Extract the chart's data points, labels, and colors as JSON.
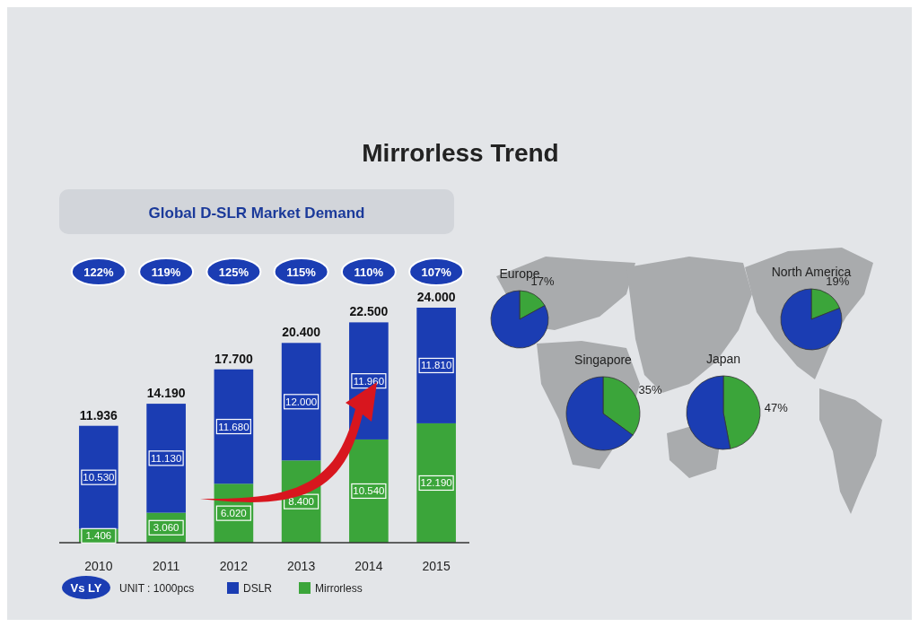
{
  "chart_data": [
    {
      "type": "bar",
      "title": "Mirrorless Trend",
      "subtitle": "Global D-SLR Market Demand",
      "stacked": true,
      "legend": "bottom",
      "categories": [
        "2010",
        "2011",
        "2012",
        "2013",
        "2014",
        "2015"
      ],
      "series": [
        {
          "name": "Mirrorless",
          "color": "#3ba53a",
          "values": [
            1.406,
            3.06,
            6.02,
            8.4,
            10.54,
            12.19
          ],
          "value_labels": [
            "1.406",
            "3.060",
            "6.020",
            "8.400",
            "10.540",
            "12.190"
          ]
        },
        {
          "name": "DSLR",
          "color": "#1b3db3",
          "values": [
            10.53,
            11.13,
            11.68,
            12.0,
            11.96,
            11.81
          ],
          "value_labels": [
            "10.530",
            "11.130",
            "11.680",
            "12.000",
            "11.960",
            "11.810"
          ]
        }
      ],
      "totals": [
        "11.936",
        "14.190",
        "17.700",
        "20.400",
        "22.500",
        "24.000"
      ],
      "annotations": [
        "122%",
        "119%",
        "125%",
        "115%",
        "110%",
        "107%",
        "Vs LY",
        "UNIT : 1000pcs"
      ]
    },
    {
      "type": "pie",
      "title": "Europe",
      "categories": [
        null,
        null
      ],
      "values": [
        17,
        83
      ],
      "colors": [
        "#3ba53a",
        "#1b3db3"
      ],
      "value_labels": [
        "17%",
        null
      ]
    },
    {
      "type": "pie",
      "title": "Singapore",
      "categories": [
        null,
        null
      ],
      "values": [
        35,
        65
      ],
      "colors": [
        "#3ba53a",
        "#1b3db3"
      ],
      "value_labels": [
        "35%",
        null
      ]
    },
    {
      "type": "pie",
      "title": "Japan",
      "categories": [
        null,
        null
      ],
      "values": [
        47,
        53
      ],
      "colors": [
        "#3ba53a",
        "#1b3db3"
      ],
      "value_labels": [
        "47%",
        null
      ]
    },
    {
      "type": "pie",
      "title": "North America",
      "categories": [
        null,
        null
      ],
      "values": [
        19,
        81
      ],
      "colors": [
        "#3ba53a",
        "#1b3db3"
      ],
      "value_labels": [
        "19%",
        null
      ]
    }
  ]
}
